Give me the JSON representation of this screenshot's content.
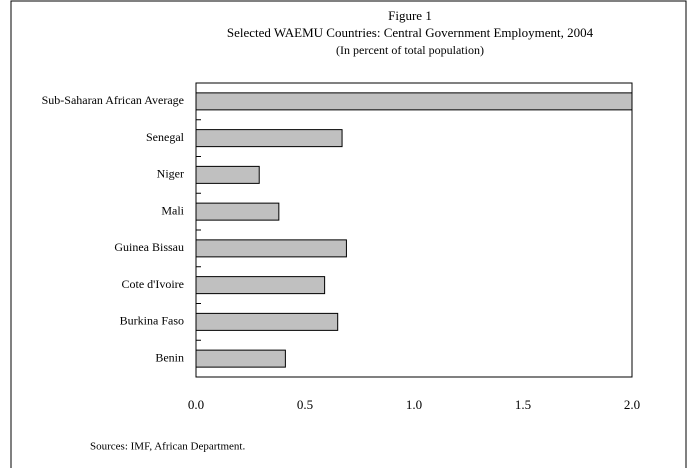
{
  "chart_data": {
    "type": "bar",
    "orientation": "horizontal",
    "heading": "Figure 1",
    "title": "Selected WAEMU Countries: Central Government Employment, 2004",
    "subtitle": "(In percent of total population)",
    "categories": [
      "Sub-Saharan African Average",
      "Senegal",
      "Niger",
      "Mali",
      "Guinea Bissau",
      "Cote d'Ivoire",
      "Burkina Faso",
      "Benin"
    ],
    "values": [
      2.0,
      0.67,
      0.29,
      0.38,
      0.69,
      0.59,
      0.65,
      0.41
    ],
    "color": "#c0c0c0",
    "xlim": [
      0,
      2.0
    ],
    "xticks": [
      {
        "value": 0,
        "label": "0.0"
      },
      0.5,
      {
        "value": 1,
        "label": "1.0"
      },
      1.5,
      {
        "value": 2,
        "label": "2.0"
      }
    ],
    "grid": false,
    "source": "Sources: IMF, African Department."
  }
}
